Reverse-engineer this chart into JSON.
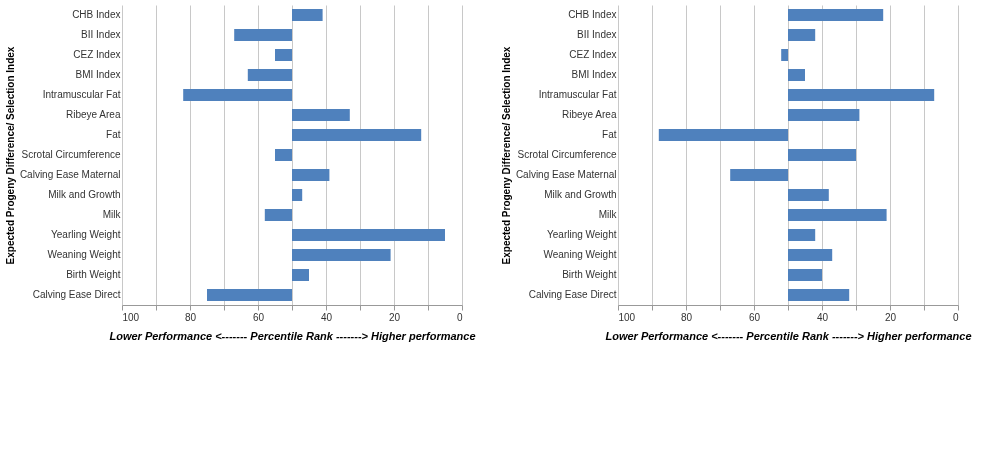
{
  "chart_data": [
    {
      "type": "bar",
      "orientation": "horizontal",
      "ylabel": "Expected Progeny Difference/ Selection Index",
      "xlabel": "Lower Performance <------- Percentile Rank -------> Higher performance",
      "categories": [
        "CHB Index",
        "BII Index",
        "CEZ Index",
        "BMI Index",
        "Intramuscular Fat",
        "Ribeye Area",
        "Fat",
        "Scrotal Circumference",
        "Calving Ease Maternal",
        "Milk and Growth",
        "Milk",
        "Yearling Weight",
        "Weaning Weight",
        "Birth Weight",
        "Calving Ease Direct"
      ],
      "base": [
        50,
        50,
        50,
        50,
        50,
        50,
        50,
        50,
        50,
        50,
        50,
        50,
        50,
        50,
        50
      ],
      "values": [
        -9,
        17,
        5,
        13,
        32,
        -17,
        -38,
        5,
        -11,
        -3,
        8,
        -45,
        -29,
        -5,
        25
      ],
      "color": "#4f81bd",
      "xlim": [
        100,
        0
      ],
      "xticks": [
        100,
        {
          "value": 90,
          "label": null
        },
        80,
        {
          "value": 70,
          "label": null
        },
        60,
        {
          "value": 50,
          "label": null
        },
        40,
        {
          "value": 30,
          "label": null
        },
        20,
        {
          "value": 10,
          "label": null
        },
        0
      ],
      "grid": "x"
    },
    {
      "type": "bar",
      "orientation": "horizontal",
      "ylabel": "Expected Progeny Difference/ Selection Index",
      "xlabel": "Lower Performance <------- Percentile Rank -------> Higher performance",
      "categories": [
        "CHB Index",
        "BII Index",
        "CEZ Index",
        "BMI Index",
        "Intramuscular Fat",
        "Ribeye Area",
        "Fat",
        "Scrotal Circumference",
        "Calving Ease Maternal",
        "Milk and Growth",
        "Milk",
        "Yearling Weight",
        "Weaning Weight",
        "Birth Weight",
        "Calving Ease Direct"
      ],
      "base": [
        50,
        50,
        50,
        50,
        50,
        50,
        50,
        50,
        50,
        50,
        50,
        50,
        50,
        50,
        50
      ],
      "values": [
        -28,
        -8,
        2,
        -5,
        -43,
        -21,
        38,
        -20,
        17,
        -12,
        -29,
        -8,
        -13,
        -10,
        -18
      ],
      "color": "#4f81bd",
      "xlim": [
        100,
        0
      ],
      "xticks": [
        100,
        {
          "value": 90,
          "label": null
        },
        80,
        {
          "value": 70,
          "label": null
        },
        60,
        {
          "value": 50,
          "label": null
        },
        40,
        {
          "value": 30,
          "label": null
        },
        20,
        {
          "value": 10,
          "label": null
        },
        0
      ],
      "grid": "x"
    }
  ]
}
